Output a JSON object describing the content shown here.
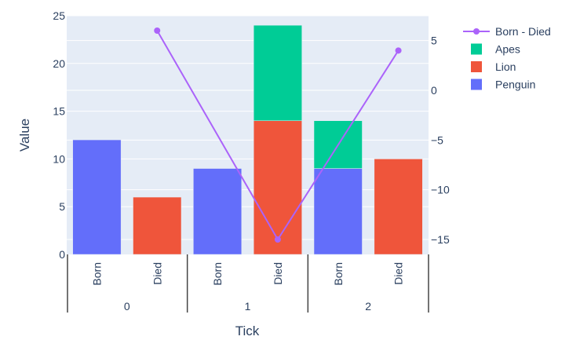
{
  "chart_data": {
    "type": "bar",
    "barmode": "stack",
    "xlabel": "Tick",
    "ylabel": "Value",
    "x_groups": [
      "0",
      "1",
      "2"
    ],
    "x_subcategories": [
      "Born",
      "Died"
    ],
    "categories": [
      {
        "group": "0",
        "sub": "Born"
      },
      {
        "group": "0",
        "sub": "Died"
      },
      {
        "group": "1",
        "sub": "Born"
      },
      {
        "group": "1",
        "sub": "Died"
      },
      {
        "group": "2",
        "sub": "Born"
      },
      {
        "group": "2",
        "sub": "Died"
      }
    ],
    "ylim": [
      0,
      25
    ],
    "yticks": [
      0,
      5,
      10,
      15,
      20,
      25
    ],
    "y2lim": [
      -16.5,
      7.5
    ],
    "y2ticks": [
      5,
      0,
      -5,
      -10,
      -15
    ],
    "grid": true,
    "legend_position": "top-right",
    "bar_series": [
      {
        "name": "Penguin",
        "color": "#636efa",
        "values": [
          12,
          0,
          9,
          0,
          9,
          0
        ]
      },
      {
        "name": "Lion",
        "color": "#ef553b",
        "values": [
          0,
          6,
          0,
          14,
          0,
          10
        ]
      },
      {
        "name": "Apes",
        "color": "#00cc96",
        "values": [
          0,
          0,
          0,
          10,
          5,
          0
        ]
      }
    ],
    "line_series": {
      "name": "Born - Died",
      "color": "#ab63fa",
      "axis": "y2",
      "points": [
        {
          "x_index": 1,
          "value": 6
        },
        {
          "x_index": 3,
          "value": -15
        },
        {
          "x_index": 5,
          "value": 4
        }
      ]
    },
    "legend": [
      {
        "name": "Born - Died",
        "kind": "line",
        "color": "#ab63fa"
      },
      {
        "name": "Apes",
        "kind": "box",
        "color": "#00cc96"
      },
      {
        "name": "Lion",
        "kind": "box",
        "color": "#ef553b"
      },
      {
        "name": "Penguin",
        "kind": "box",
        "color": "#636efa"
      }
    ],
    "colors": {
      "plot_bg": "#e5ecf6",
      "grid": "#ffffff",
      "text": "#2a3f5f"
    }
  }
}
